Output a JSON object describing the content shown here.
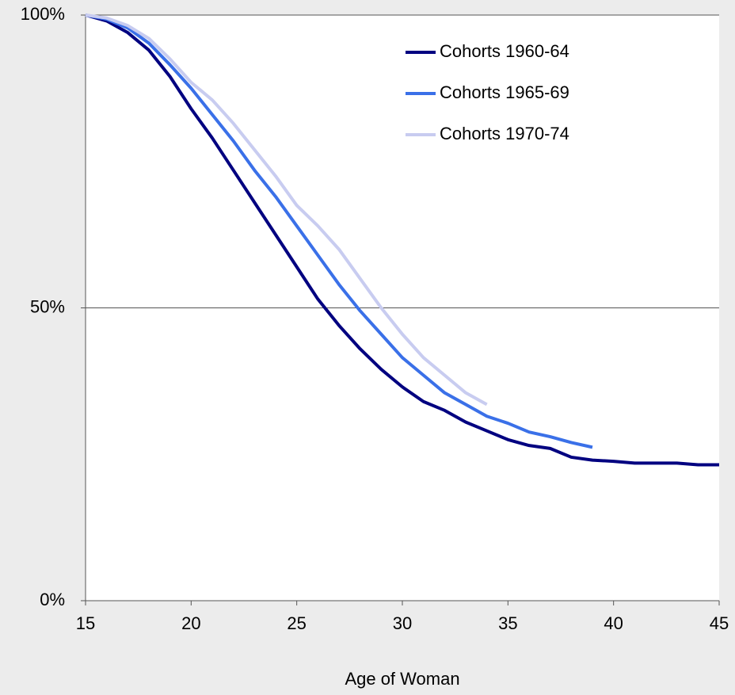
{
  "chart_data": {
    "type": "line",
    "x_label": "Age of Woman",
    "x": [
      15,
      16,
      17,
      18,
      19,
      20,
      21,
      22,
      23,
      24,
      25,
      26,
      27,
      28,
      29,
      30,
      31,
      32,
      33,
      34,
      35,
      36,
      37,
      38,
      39,
      40,
      41,
      42,
      43,
      44,
      45
    ],
    "series": [
      {
        "name": "Cohorts 1960-64",
        "color": "#000080",
        "values": [
          100,
          99,
          97,
          94,
          89.5,
          84,
          79,
          73.5,
          68,
          62.5,
          57,
          51.5,
          47,
          43,
          39.5,
          36.5,
          34,
          32.5,
          30.5,
          29,
          27.5,
          26.5,
          26,
          24.5,
          24,
          23.8,
          23.5,
          23.5,
          23.5,
          23.2,
          23.2
        ]
      },
      {
        "name": "Cohorts 1965-69",
        "color": "#3a70e8",
        "values": [
          100,
          99.3,
          97.8,
          95.2,
          91.5,
          87.5,
          83,
          78.5,
          73.5,
          69,
          64,
          59,
          54,
          49.5,
          45.5,
          41.5,
          38.5,
          35.5,
          33.5,
          31.5,
          30.3,
          28.8,
          28,
          27,
          26.2,
          null,
          null,
          null,
          null,
          null,
          null
        ]
      },
      {
        "name": "Cohorts 1970-74",
        "color": "#c8ccf0",
        "values": [
          100,
          99.5,
          98.2,
          96,
          92.5,
          88.5,
          85.5,
          81.5,
          77,
          72.5,
          67.5,
          64,
          60,
          55,
          50,
          45.5,
          41.5,
          38.5,
          35.5,
          33.5,
          null,
          null,
          null,
          null,
          null,
          null,
          null,
          null,
          null,
          null,
          null
        ]
      }
    ],
    "xlim": [
      15,
      45
    ],
    "xticks": [
      15,
      20,
      25,
      30,
      35,
      40,
      45
    ],
    "ylim": [
      0,
      100
    ],
    "yticks": [
      {
        "value": 0,
        "label": "0%"
      },
      {
        "value": 50,
        "label": "50%"
      },
      {
        "value": 100,
        "label": "100%"
      }
    ],
    "grid": true,
    "legend": "upper right"
  }
}
